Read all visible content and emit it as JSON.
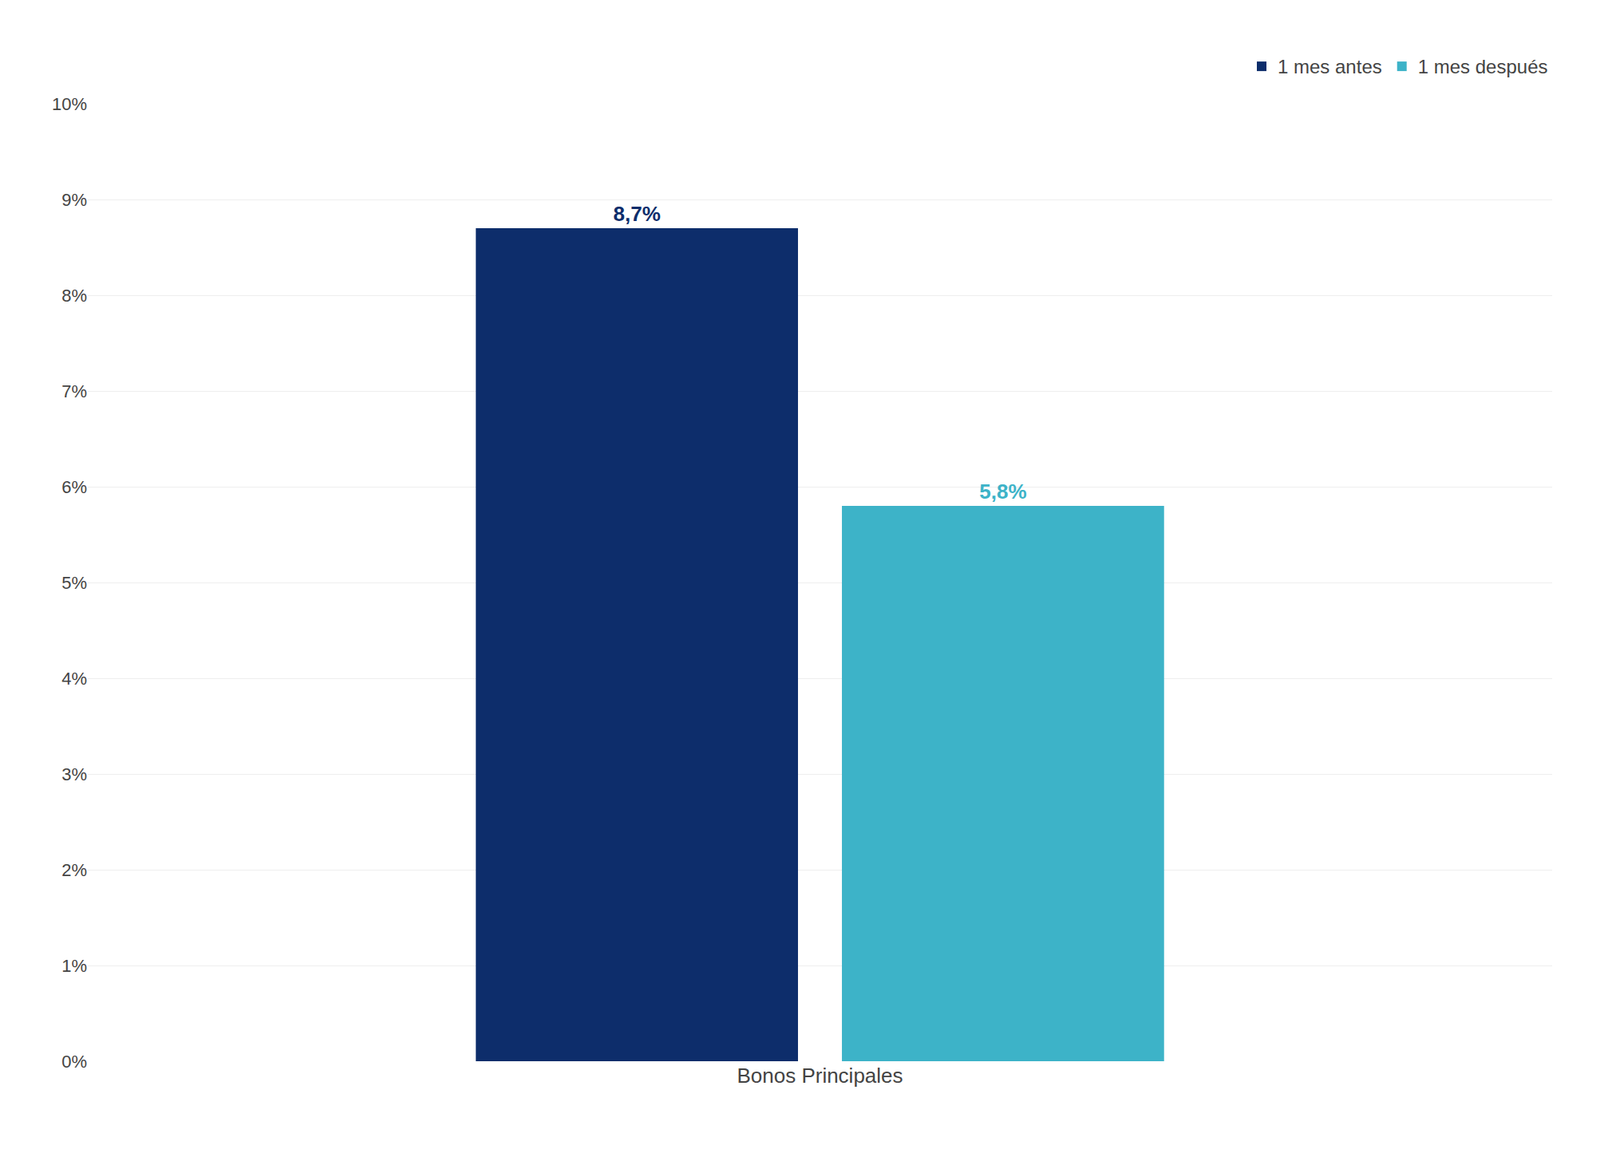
{
  "chart_data": {
    "type": "bar",
    "categories": [
      "Bonos Principales"
    ],
    "series": [
      {
        "name": "1 mes antes",
        "color": "#0d2d6b",
        "values": [
          8.7
        ],
        "value_labels": [
          "8,7%"
        ]
      },
      {
        "name": "1 mes después",
        "color": "#3db3c8",
        "values": [
          5.8
        ],
        "value_labels": [
          "5,8%"
        ]
      }
    ],
    "ylim": [
      0,
      10
    ],
    "yticks": [
      {
        "value": 0,
        "label": "0%"
      },
      {
        "value": 1,
        "label": "1%"
      },
      {
        "value": 2,
        "label": "2%"
      },
      {
        "value": 3,
        "label": "3%"
      },
      {
        "value": 4,
        "label": "4%"
      },
      {
        "value": 5,
        "label": "5%"
      },
      {
        "value": 6,
        "label": "6%"
      },
      {
        "value": 7,
        "label": "7%"
      },
      {
        "value": 8,
        "label": "8%"
      },
      {
        "value": 9,
        "label": "9%"
      },
      {
        "value": 10,
        "label": "10%"
      }
    ],
    "grid": true,
    "legend": "upper right",
    "data_labels": true
  }
}
